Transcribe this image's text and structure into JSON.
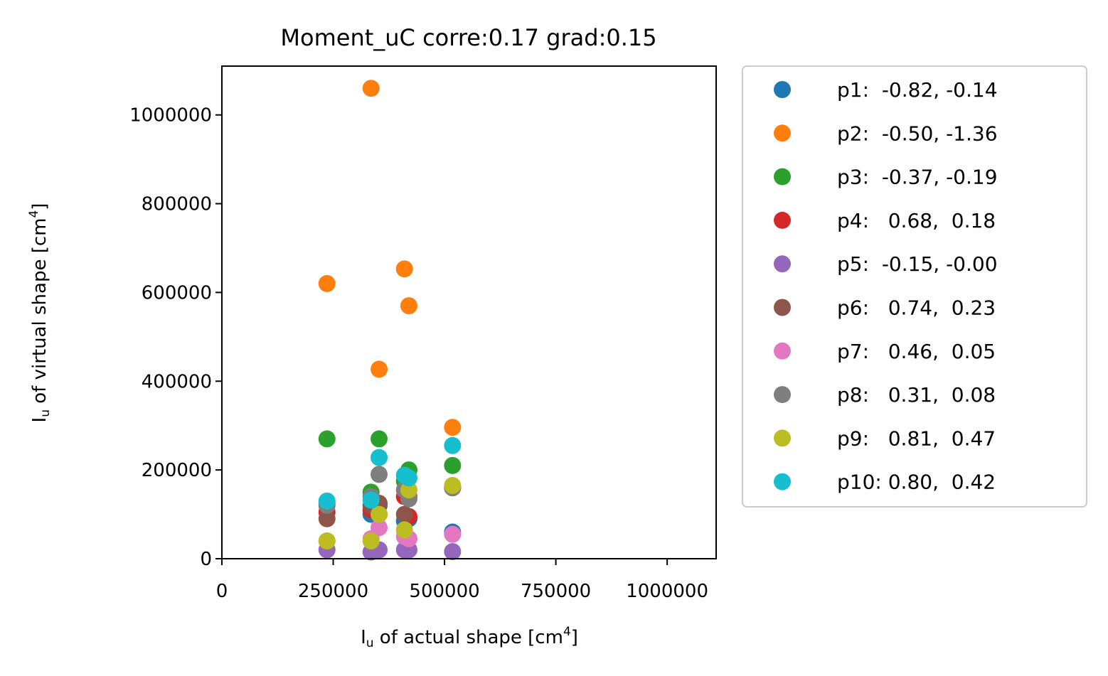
{
  "chart_data": {
    "type": "scatter",
    "title": "Moment_uC corre:0.17 grad:0.15",
    "xlabel": {
      "main": "I",
      "sub": "u",
      "rest": " of actual shape [cm",
      "sup": "4",
      "end": "]"
    },
    "ylabel": {
      "main": "I",
      "sub": "u",
      "rest": " of virtual shape [cm",
      "sup": "4",
      "end": "]"
    },
    "xlim": [
      0,
      1110000
    ],
    "ylim": [
      0,
      1110000
    ],
    "xticks": [
      0,
      250000,
      500000,
      750000,
      1000000
    ],
    "xtick_labels": [
      "0",
      "250000",
      "500000",
      "750000",
      "1000000"
    ],
    "yticks": [
      0,
      200000,
      400000,
      600000,
      800000,
      1000000
    ],
    "ytick_labels": [
      "0",
      "200000",
      "400000",
      "600000",
      "800000",
      "1000000"
    ],
    "grid": false,
    "legend_position": "outside-right",
    "series": [
      {
        "name": "p1:  -0.82, -0.14",
        "color": "#1f77b4",
        "x": [
          236000,
          335000,
          353000,
          410000,
          420000,
          518000
        ],
        "y": [
          125000,
          100000,
          120000,
          85000,
          90000,
          60000
        ]
      },
      {
        "name": "p2:  -0.50, -1.36",
        "color": "#ff7f0e",
        "x": [
          236000,
          335000,
          353000,
          410000,
          420000,
          518000
        ],
        "y": [
          620000,
          1060000,
          427000,
          653000,
          570000,
          296000
        ]
      },
      {
        "name": "p3:  -0.37, -0.19",
        "color": "#2ca02c",
        "x": [
          236000,
          335000,
          353000,
          410000,
          420000,
          518000
        ],
        "y": [
          270000,
          150000,
          270000,
          175000,
          200000,
          210000
        ]
      },
      {
        "name": "p4:   0.68,  0.18",
        "color": "#d62728",
        "x": [
          236000,
          335000,
          353000,
          410000,
          420000,
          518000
        ],
        "y": [
          105000,
          110000,
          100000,
          140000,
          95000,
          160000
        ]
      },
      {
        "name": "p5:  -0.15, -0.00",
        "color": "#9467bd",
        "x": [
          236000,
          335000,
          353000,
          410000,
          420000,
          518000
        ],
        "y": [
          20000,
          15000,
          20000,
          20000,
          20000,
          16000
        ]
      },
      {
        "name": "p6:   0.74,  0.23",
        "color": "#8c564b",
        "x": [
          236000,
          335000,
          353000,
          410000,
          420000,
          518000
        ],
        "y": [
          90000,
          120000,
          125000,
          100000,
          140000,
          160000
        ]
      },
      {
        "name": "p7:   0.46,  0.05",
        "color": "#e377c2",
        "x": [
          236000,
          335000,
          353000,
          410000,
          420000,
          518000
        ],
        "y": [
          40000,
          45000,
          70000,
          50000,
          45000,
          55000
        ]
      },
      {
        "name": "p8:   0.31,  0.08",
        "color": "#7f7f7f",
        "x": [
          236000,
          335000,
          353000,
          410000,
          420000,
          518000
        ],
        "y": [
          120000,
          140000,
          190000,
          155000,
          135000,
          160000
        ]
      },
      {
        "name": "p9:   0.81,  0.47",
        "color": "#bcbd22",
        "x": [
          236000,
          335000,
          353000,
          410000,
          420000,
          518000
        ],
        "y": [
          40000,
          40000,
          100000,
          65000,
          155000,
          165000
        ]
      },
      {
        "name": "p10: 0.80,  0.42",
        "color": "#17becf",
        "x": [
          236000,
          335000,
          353000,
          410000,
          420000,
          518000
        ],
        "y": [
          130000,
          132000,
          228000,
          188000,
          182000,
          255000
        ]
      }
    ]
  }
}
